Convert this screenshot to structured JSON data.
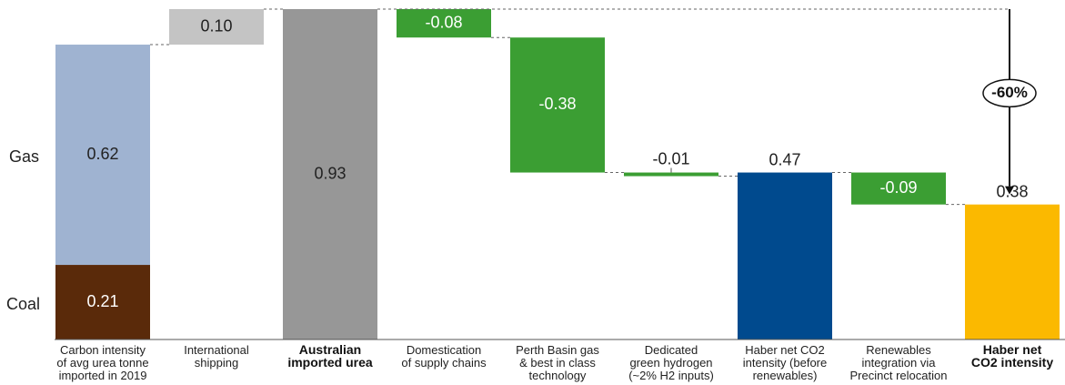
{
  "chart_data": {
    "type": "bar",
    "subtype": "waterfall",
    "categories": [
      {
        "lines": [
          "Carbon intensity",
          "of avg urea tonne",
          "imported in 2019"
        ],
        "bold": false
      },
      {
        "lines": [
          "International",
          "shipping"
        ],
        "bold": false
      },
      {
        "lines": [
          "Australian",
          "imported urea"
        ],
        "bold": true
      },
      {
        "lines": [
          "Domestication",
          "of supply chains"
        ],
        "bold": false
      },
      {
        "lines": [
          "Perth Basin gas",
          "& best in class",
          "technology"
        ],
        "bold": false
      },
      {
        "lines": [
          "Dedicated",
          "green hydrogen",
          "(~2% H2 inputs)"
        ],
        "bold": false
      },
      {
        "lines": [
          "Haber net CO2",
          "intensity (before",
          "renewables)"
        ],
        "bold": false
      },
      {
        "lines": [
          "Renewables",
          "integration via",
          "Precinct relocation"
        ],
        "bold": false
      },
      {
        "lines": [
          "Haber net",
          "CO2 intensity"
        ],
        "bold": true
      }
    ],
    "bars": [
      {
        "kind": "stack",
        "segments": [
          {
            "name": "Coal",
            "value": 0.21,
            "label": "0.21",
            "color": "#5a2a0a",
            "text_color": "#ffffff"
          },
          {
            "name": "Gas",
            "value": 0.62,
            "label": "0.62",
            "color": "#9fb3d1",
            "text_color": "#222222"
          }
        ]
      },
      {
        "kind": "delta",
        "value": 0.1,
        "label": "0.10",
        "color": "#c4c4c4",
        "text_color": "#222222"
      },
      {
        "kind": "total",
        "value": 0.93,
        "label": "0.93",
        "color": "#979797",
        "text_color": "#222222"
      },
      {
        "kind": "delta",
        "value": -0.08,
        "label": "-0.08",
        "color": "#3b9e33",
        "text_color": "#ffffff"
      },
      {
        "kind": "delta",
        "value": -0.38,
        "label": "-0.38",
        "color": "#3b9e33",
        "text_color": "#ffffff"
      },
      {
        "kind": "delta",
        "value": -0.01,
        "label": "-0.01",
        "color": "#3b9e33",
        "text_color": "#222222",
        "label_position": "above"
      },
      {
        "kind": "total",
        "value": 0.47,
        "label": "0.47",
        "color": "#004a8e",
        "text_color": "#222222",
        "label_position": "above"
      },
      {
        "kind": "delta",
        "value": -0.09,
        "label": "-0.09",
        "color": "#3b9e33",
        "text_color": "#ffffff"
      },
      {
        "kind": "total",
        "value": 0.38,
        "label": "0.38",
        "color": "#fbb900",
        "text_color": "#222222",
        "label_position": "above"
      }
    ],
    "row_labels": [
      "Gas",
      "Coal"
    ],
    "annotation": {
      "text": "-60%",
      "from_value": 0.93,
      "to_value": 0.38
    },
    "ylim": [
      0,
      0.93
    ],
    "grid": false,
    "legend": "none",
    "title": "",
    "xlabel": "",
    "ylabel": ""
  }
}
